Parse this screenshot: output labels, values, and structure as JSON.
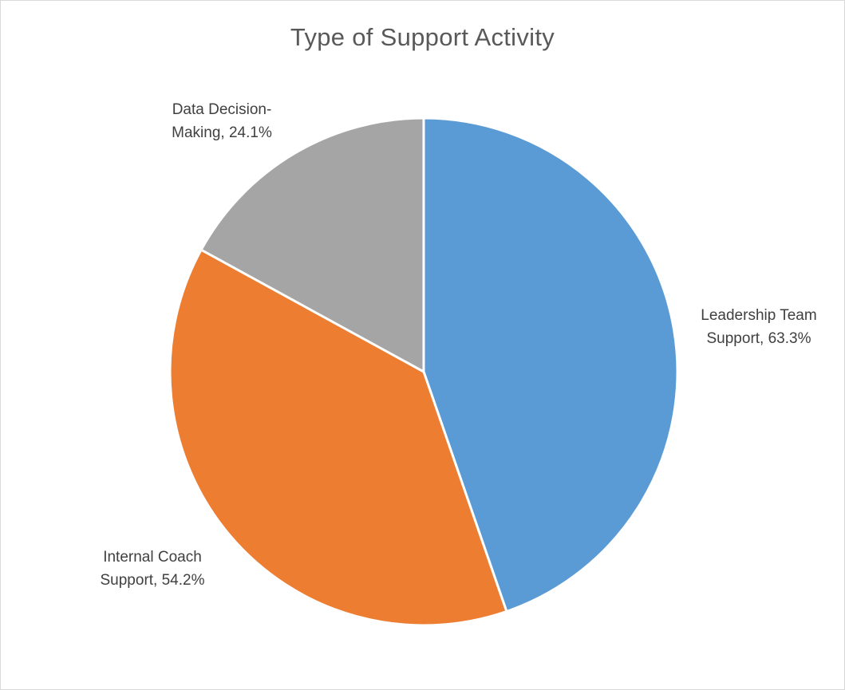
{
  "chart_data": {
    "type": "pie",
    "title": "Type of Support Activity",
    "slices": [
      {
        "label": "Leadership Team Support",
        "value": 63.3,
        "display": "63.3%",
        "color": "#5B9BD5",
        "label_lines": [
          "Leadership Team",
          "Support, 63.3%"
        ]
      },
      {
        "label": "Internal Coach Support",
        "value": 54.2,
        "display": "54.2%",
        "color": "#ED7D31",
        "label_lines": [
          "Internal Coach",
          "Support, 54.2%"
        ]
      },
      {
        "label": "Data Decision-Making",
        "value": 24.1,
        "display": "24.1%",
        "color": "#A5A5A5",
        "label_lines": [
          "Data Decision-",
          "Making, 24.1%"
        ]
      }
    ],
    "start_angle_deg": 0,
    "direction": "clockwise",
    "legend": "none"
  }
}
